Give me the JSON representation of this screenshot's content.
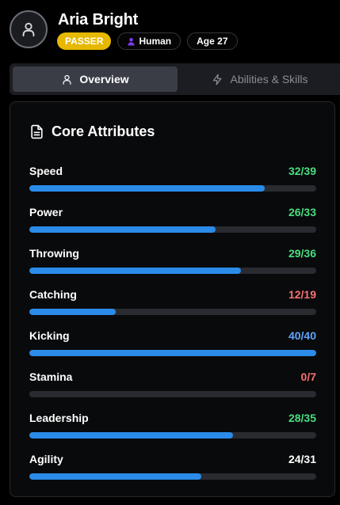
{
  "player": {
    "name": "Aria Bright",
    "role": "PASSER",
    "race": "Human",
    "age": "Age 27"
  },
  "tabs": [
    {
      "label": "Overview",
      "icon": "user-icon",
      "active": true
    },
    {
      "label": "Abilities & Skills",
      "icon": "lightning-icon",
      "active": false
    }
  ],
  "core": {
    "title": "Core Attributes",
    "icon": "document-icon",
    "attributes": [
      {
        "label": "Speed",
        "value": "32/39",
        "fraction": 0.8205,
        "color": "#4ade80"
      },
      {
        "label": "Power",
        "value": "26/33",
        "fraction": 0.6484,
        "color": "#4ade80"
      },
      {
        "label": "Throwing",
        "value": "29/36",
        "fraction": 0.7363,
        "color": "#4ade80"
      },
      {
        "label": "Catching",
        "value": "12/19",
        "fraction": 0.3022,
        "color": "#f87171"
      },
      {
        "label": "Kicking",
        "value": "40/40",
        "fraction": 1.0,
        "color": "#60a5fa"
      },
      {
        "label": "Stamina",
        "value": "0/7",
        "fraction": 0.0,
        "color": "#f87171"
      },
      {
        "label": "Leadership",
        "value": "28/35",
        "fraction": 0.7088,
        "color": "#4ade80"
      },
      {
        "label": "Agility",
        "value": "24/31",
        "fraction": 0.5989,
        "color": "#ffffff"
      }
    ]
  },
  "colors": {
    "accent": "#2b8be8",
    "role_badge": "#e6b800",
    "track": "#2a2b30"
  }
}
